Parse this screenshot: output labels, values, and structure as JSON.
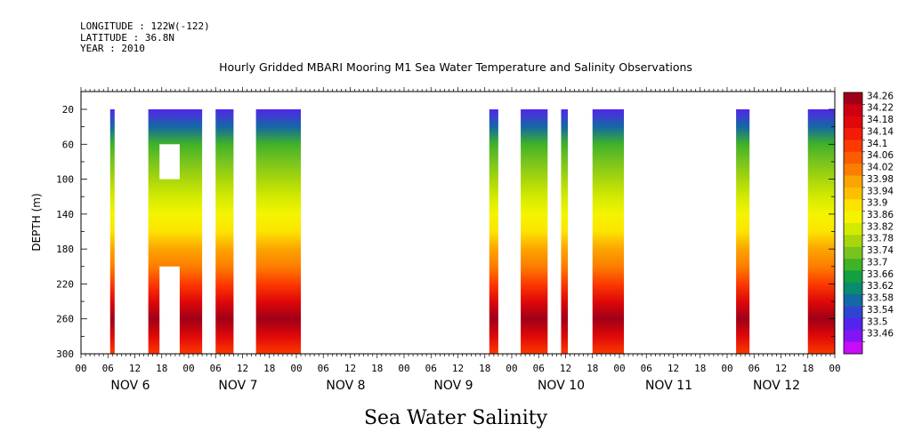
{
  "header": {
    "longitude": "LONGITUDE : 122W(-122)",
    "latitude": "LATITUDE : 36.8N",
    "year": "YEAR : 2010"
  },
  "chart_data": {
    "type": "heatmap",
    "title": "Hourly Gridded MBARI Mooring M1 Sea Water Temperature and Salinity Observations",
    "subtitle": "Sea Water Salinity",
    "ylabel": "DEPTH (m)",
    "xlabel": "",
    "y_ticks": [
      20,
      60,
      100,
      140,
      180,
      220,
      260,
      300
    ],
    "ylim": [
      300,
      0
    ],
    "x_hour_ticks": [
      "00",
      "06",
      "12",
      "18",
      "00",
      "06",
      "12",
      "18",
      "00",
      "06",
      "12",
      "18",
      "00",
      "06",
      "12",
      "18",
      "00",
      "06",
      "12",
      "18",
      "00",
      "06",
      "12",
      "18",
      "00",
      "06",
      "12",
      "18",
      "00"
    ],
    "x_day_labels": [
      "NOV  6",
      "NOV  7",
      "NOV  8",
      "NOV  9",
      "NOV 10",
      "NOV 11",
      "NOV 12"
    ],
    "time_range_hours": [
      0,
      168
    ],
    "data_intervals_hours": [
      [
        6.5,
        7.5
      ],
      [
        15,
        27
      ],
      [
        30,
        34
      ],
      [
        39,
        49
      ],
      [
        91,
        93
      ],
      [
        98,
        104
      ],
      [
        107,
        108.5
      ],
      [
        114,
        121
      ],
      [
        146,
        149
      ],
      [
        162,
        168
      ]
    ],
    "missing_cells": [
      [
        17.5,
        22,
        60,
        100
      ],
      [
        17.5,
        22,
        200,
        300
      ]
    ],
    "salinity_profile": {
      "depth": [
        20,
        40,
        60,
        80,
        100,
        120,
        140,
        160,
        180,
        200,
        220,
        240,
        260,
        280,
        300
      ],
      "value": [
        33.56,
        33.64,
        33.72,
        33.77,
        33.8,
        33.84,
        33.88,
        33.93,
        33.98,
        34.02,
        34.1,
        34.18,
        34.24,
        34.18,
        34.1
      ]
    },
    "colorbar": {
      "levels": [
        34.26,
        34.22,
        34.18,
        34.14,
        34.1,
        34.06,
        34.02,
        33.98,
        33.94,
        33.9,
        33.86,
        33.82,
        33.78,
        33.74,
        33.7,
        33.66,
        33.62,
        33.58,
        33.54,
        33.5,
        33.46
      ],
      "labels": [
        "34.26",
        "34.22",
        "34.18",
        "34.14",
        "34.1",
        "34.06",
        "34.02",
        "33.98",
        "33.94",
        "33.9",
        "33.86",
        "33.82",
        "33.78",
        "33.74",
        "33.7",
        "33.66",
        "33.62",
        "33.58",
        "33.54",
        "33.5",
        "33.46"
      ],
      "colors": [
        "#a00018",
        "#cc0010",
        "#e00808",
        "#f41a06",
        "#fc3a00",
        "#fc5c00",
        "#fc7e00",
        "#fca400",
        "#fcc000",
        "#fce400",
        "#f4f400",
        "#d2ea00",
        "#a8d60c",
        "#78c41e",
        "#40b228",
        "#12a040",
        "#0a8a70",
        "#1468a4",
        "#3044d2",
        "#5424ec",
        "#8414f4",
        "#c80cf8"
      ]
    },
    "grid": false,
    "legend": "right"
  }
}
